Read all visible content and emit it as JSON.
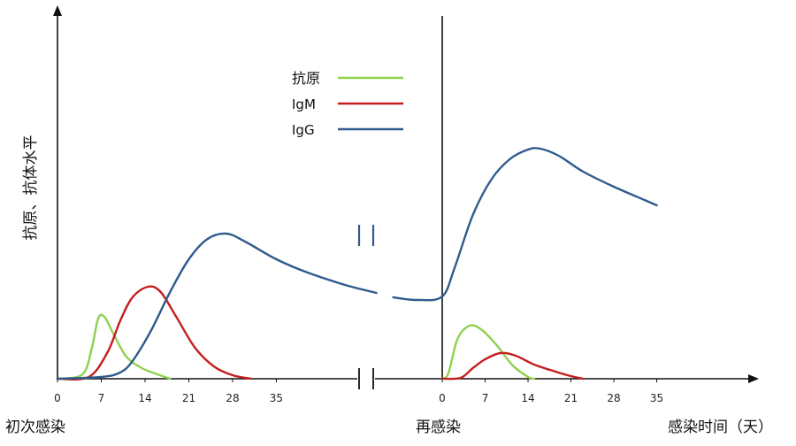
{
  "chart_data": {
    "type": "line",
    "ylabel": "抗原、抗体水平",
    "xlabel": "感染时间（天）",
    "phase_labels": [
      "初次感染",
      "再感染"
    ],
    "primary_ticks": [
      "0",
      "7",
      "14",
      "21",
      "28",
      "35"
    ],
    "secondary_ticks": [
      "0",
      "7",
      "14",
      "21",
      "28",
      "35"
    ],
    "axis_break": true,
    "legend": {
      "placement": "top-center"
    },
    "series": [
      {
        "name": "抗原",
        "color": "#8fd14f",
        "primary": [
          [
            0,
            0
          ],
          [
            4,
            0.05
          ],
          [
            5.5,
            0.35
          ],
          [
            6.5,
            0.68
          ],
          [
            7.5,
            0.7
          ],
          [
            9,
            0.5
          ],
          [
            11,
            0.25
          ],
          [
            13.5,
            0.12
          ],
          [
            16,
            0.05
          ],
          [
            18,
            0.0
          ]
        ],
        "secondary": [
          [
            0,
            0
          ],
          [
            1,
            0.06
          ],
          [
            2.5,
            0.45
          ],
          [
            4.5,
            0.6
          ],
          [
            6.5,
            0.55
          ],
          [
            9,
            0.37
          ],
          [
            11.5,
            0.15
          ],
          [
            14,
            0.02
          ],
          [
            15,
            0.0
          ]
        ]
      },
      {
        "name": "IgM",
        "color": "#c41e1e",
        "primary": [
          [
            0,
            0
          ],
          [
            5,
            0.02
          ],
          [
            8,
            0.3
          ],
          [
            10,
            0.65
          ],
          [
            12,
            0.92
          ],
          [
            14.5,
            1.04
          ],
          [
            16.5,
            0.98
          ],
          [
            19,
            0.7
          ],
          [
            22,
            0.35
          ],
          [
            25,
            0.14
          ],
          [
            28,
            0.04
          ],
          [
            31,
            0.0
          ]
        ],
        "secondary": [
          [
            0,
            0
          ],
          [
            3,
            0.01
          ],
          [
            5,
            0.12
          ],
          [
            7,
            0.22
          ],
          [
            9.5,
            0.29
          ],
          [
            12,
            0.26
          ],
          [
            15,
            0.16
          ],
          [
            18.5,
            0.08
          ],
          [
            21,
            0.03
          ],
          [
            23,
            0.0
          ]
        ]
      },
      {
        "name": "IgG",
        "color": "#2f5b8c",
        "primary": [
          [
            0,
            0
          ],
          [
            7,
            0.02
          ],
          [
            10,
            0.07
          ],
          [
            12,
            0.2
          ],
          [
            15,
            0.55
          ],
          [
            18,
            0.98
          ],
          [
            21,
            1.35
          ],
          [
            24,
            1.58
          ],
          [
            27,
            1.64
          ],
          [
            30,
            1.55
          ],
          [
            35,
            1.35
          ],
          [
            40,
            1.2
          ],
          [
            46,
            1.06
          ],
          [
            51,
            0.97
          ]
        ],
        "secondary": [
          [
            -8,
            0.92
          ],
          [
            -4,
            0.89
          ],
          [
            0,
            0.93
          ],
          [
            2,
            1.25
          ],
          [
            5,
            1.85
          ],
          [
            8,
            2.25
          ],
          [
            11,
            2.48
          ],
          [
            14,
            2.59
          ],
          [
            16,
            2.6
          ],
          [
            19,
            2.52
          ],
          [
            23,
            2.34
          ],
          [
            28,
            2.17
          ],
          [
            33,
            2.02
          ],
          [
            35,
            1.96
          ]
        ]
      }
    ]
  }
}
